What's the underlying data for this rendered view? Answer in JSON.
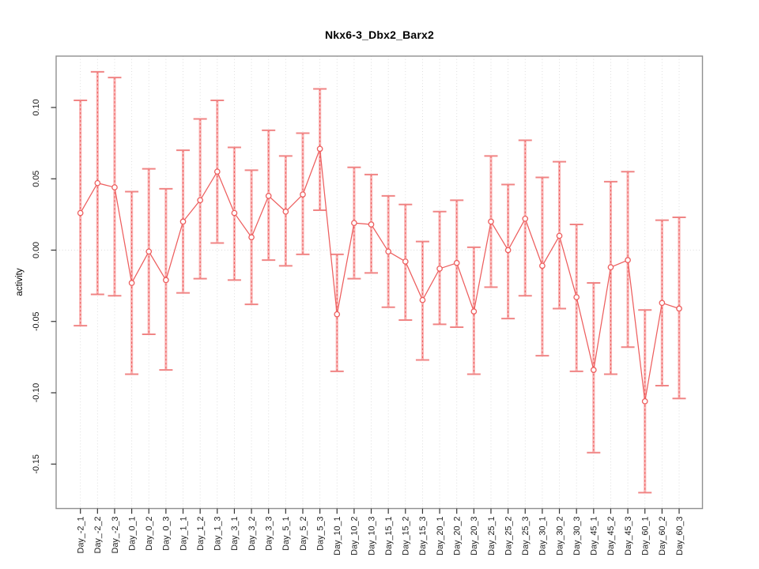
{
  "chart_data": {
    "type": "scatter",
    "subtype": "points-with-error-bars-and-connecting-line",
    "title": "Nkx6-3_Dbx2_Barx2",
    "xlabel": "",
    "ylabel": "activity",
    "legend": "none",
    "grid": "dotted vertical line at every category; dotted horizontal line at y=0",
    "ylim": [
      -0.182,
      0.136
    ],
    "yticks": [
      0.1,
      0.05,
      0.0,
      -0.05,
      -0.1,
      -0.15
    ],
    "ytick_labels": [
      "0.10",
      "0.05",
      "0.00",
      "-0.05",
      "-0.10",
      "-0.15"
    ],
    "categories": [
      "Day_-2_1",
      "Day_-2_2",
      "Day_-2_3",
      "Day_0_1",
      "Day_0_2",
      "Day_0_3",
      "Day_1_1",
      "Day_1_2",
      "Day_1_3",
      "Day_3_1",
      "Day_3_2",
      "Day_3_3",
      "Day_5_1",
      "Day_5_2",
      "Day_5_3",
      "Day_10_1",
      "Day_10_2",
      "Day_10_3",
      "Day_15_1",
      "Day_15_2",
      "Day_15_3",
      "Day_20_1",
      "Day_20_2",
      "Day_20_3",
      "Day_25_1",
      "Day_25_2",
      "Day_25_3",
      "Day_30_1",
      "Day_30_2",
      "Day_30_3",
      "Day_45_1",
      "Day_45_2",
      "Day_45_3",
      "Day_60_1",
      "Day_60_2",
      "Day_60_3"
    ],
    "values": [
      0.026,
      0.047,
      0.044,
      -0.023,
      -0.001,
      -0.021,
      0.02,
      0.035,
      0.055,
      0.026,
      0.009,
      0.038,
      0.027,
      0.039,
      0.071,
      -0.045,
      0.019,
      0.018,
      -0.001,
      -0.008,
      -0.035,
      -0.013,
      -0.009,
      -0.043,
      0.02,
      0.0,
      0.022,
      -0.011,
      0.01,
      -0.033,
      -0.084,
      -0.012,
      -0.007,
      -0.106,
      -0.037,
      -0.041
    ],
    "error_high": [
      0.105,
      0.125,
      0.121,
      0.041,
      0.057,
      0.043,
      0.07,
      0.092,
      0.105,
      0.072,
      0.056,
      0.084,
      0.066,
      0.082,
      0.113,
      -0.003,
      0.058,
      0.053,
      0.038,
      0.032,
      0.006,
      0.027,
      0.035,
      0.002,
      0.066,
      0.046,
      0.077,
      0.051,
      0.062,
      0.018,
      -0.023,
      0.048,
      0.055,
      -0.042,
      0.021,
      0.023
    ],
    "error_low": [
      -0.053,
      -0.031,
      -0.032,
      -0.087,
      -0.059,
      -0.084,
      -0.03,
      -0.02,
      0.005,
      -0.021,
      -0.038,
      -0.007,
      -0.011,
      -0.003,
      0.028,
      -0.085,
      -0.02,
      -0.016,
      -0.04,
      -0.049,
      -0.077,
      -0.052,
      -0.054,
      -0.087,
      -0.026,
      -0.048,
      -0.032,
      -0.074,
      -0.041,
      -0.085,
      -0.142,
      -0.087,
      -0.068,
      -0.17,
      -0.095,
      -0.104
    ],
    "colors": {
      "series_line": "#ed5e5e",
      "error_bar_dash": "#ee5f5f",
      "error_bar_band": "#f9b6b6",
      "error_bar_cap": "#f08585",
      "marker_stroke": "#ed5e5e",
      "grid": "#dadada",
      "box": "#909090",
      "tick": "#333333",
      "text": "#1a1a1a"
    }
  }
}
